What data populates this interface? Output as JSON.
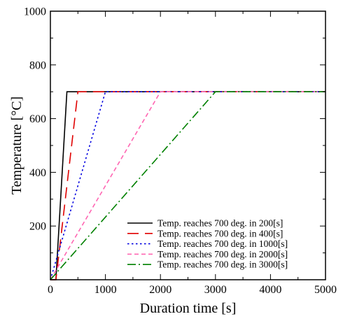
{
  "chart_data": {
    "type": "line",
    "xlabel": "Duration time [s]",
    "ylabel": "Temperature [°C]",
    "xlim": [
      0,
      5000
    ],
    "ylim": [
      0,
      1000
    ],
    "xticks": [
      0,
      1000,
      2000,
      3000,
      4000,
      5000
    ],
    "yticks": [
      0,
      200,
      400,
      600,
      800,
      1000
    ],
    "xtick_labels": [
      "0",
      "1000",
      "2000",
      "3000",
      "4000",
      "5000"
    ],
    "ytick_labels": [
      "",
      "200",
      "400",
      "600",
      "800",
      "1000"
    ],
    "grid": false,
    "legend_position": "bottom-right",
    "series": [
      {
        "name": "Temp. reaches 700 deg. in 200[s]",
        "color": "#000000",
        "dash": "solid",
        "x": [
          0,
          100,
          300,
          5000
        ],
        "y": [
          0,
          0,
          700,
          700
        ]
      },
      {
        "name": "Temp. reaches 700 deg. in 400[s]",
        "color": "#e00000",
        "dash": "dashed",
        "x": [
          0,
          100,
          500,
          5000
        ],
        "y": [
          0,
          0,
          700,
          700
        ]
      },
      {
        "name": "Temp. reaches 700 deg. in 1000[s]",
        "color": "#0000e0",
        "dash": "dotted",
        "x": [
          0,
          1000,
          5000
        ],
        "y": [
          0,
          700,
          700
        ]
      },
      {
        "name": "Temp. reaches 700 deg. in 2000[s]",
        "color": "#ff66b2",
        "dash": "dashed-short",
        "x": [
          0,
          2000,
          5000
        ],
        "y": [
          0,
          700,
          700
        ]
      },
      {
        "name": "Temp. reaches 700 deg. in 3000[s]",
        "color": "#008000",
        "dash": "dash-dot",
        "x": [
          0,
          3000,
          5000
        ],
        "y": [
          0,
          700,
          700
        ]
      }
    ]
  }
}
